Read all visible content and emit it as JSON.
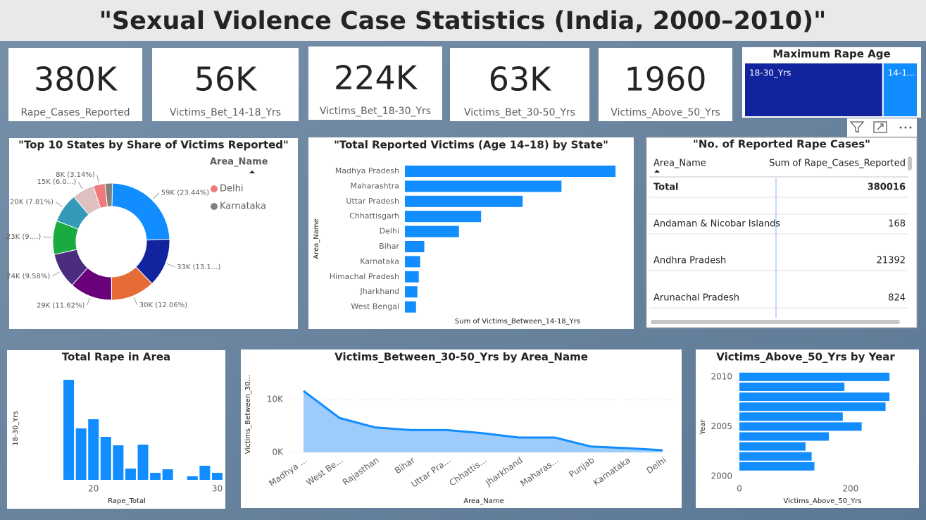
{
  "title": "\"Sexual Violence Case Statistics (India, 2000–2010)\"",
  "kpis": [
    {
      "value": "380K",
      "label": "Rape_Cases_Reported"
    },
    {
      "value": "56K",
      "label": "Victims_Bet_14-18_Yrs"
    },
    {
      "value": "224K",
      "label": "Victims_Bet_18-30_Yrs"
    },
    {
      "value": "63K",
      "label": "Victims_Bet_30-50_Yrs"
    },
    {
      "value": "1960",
      "label": "Victims_Above_50_Yrs"
    }
  ],
  "table": {
    "title": "\"No. of Reported Rape Cases\"",
    "columns": [
      "Area_Name",
      "Sum of Rape_Cases_Reported"
    ],
    "rows": [
      [
        "Total",
        380016
      ],
      [
        "Andaman & Nicobar Islands",
        168
      ],
      [
        "Andhra Pradesh",
        21392
      ],
      [
        "Arunachal Pradesh",
        824
      ]
    ]
  },
  "chart_data": [
    {
      "type": "treemap",
      "title": "Maximum Rape Age",
      "categories": [
        "18-30_Yrs",
        "14-1..."
      ],
      "values": [
        224000,
        56000
      ],
      "colors": [
        "#12239E",
        "#118DFF"
      ]
    },
    {
      "type": "donut",
      "title": "\"Top 10 States by Share of Victims Reported\"",
      "legend_title": "Area_Name",
      "categories": [
        null,
        null,
        null,
        null,
        null,
        null,
        null,
        null,
        "Delhi",
        "Karnataka"
      ],
      "values": [
        59000,
        33000,
        30000,
        29000,
        24000,
        23000,
        20000,
        15000,
        8000,
        5000
      ],
      "value_labels": [
        "59K (23.44%)",
        "33K (13.1...)",
        "30K (12.06%)",
        "29K (11.62%)",
        "24K (9.58%)",
        "23K (9....)",
        "20K (7.81%)",
        "15K (6.0...)",
        "8K (3.14%)",
        null
      ],
      "colors": [
        "#118DFF",
        "#12239E",
        "#E66C37",
        "#6B007B",
        "#4B2D7F",
        "#1AAB40",
        "#3599B8",
        "#DFBFBF",
        "#F07A7A",
        "#808080"
      ]
    },
    {
      "type": "hbar",
      "title": "\"Total Reported Victims (Age 14–18) by State\"",
      "categories": [
        "Madhya Pradesh",
        "Maharashtra",
        "Uttar Pradesh",
        "Chhattisgarh",
        "Delhi",
        "Bihar",
        "Karnataka",
        "Himachal Pradesh",
        "Jharkhand",
        "West Bengal"
      ],
      "values": [
        15200,
        11300,
        8500,
        5500,
        3900,
        1400,
        1100,
        1000,
        900,
        800
      ],
      "xlim": [
        0,
        15500
      ],
      "color": "#118DFF",
      "x_label": "Sum of Victims_Between_14-18_Yrs",
      "y_label": "Area_Name"
    },
    {
      "type": "column",
      "title": "Total Rape in Area",
      "x": [
        18,
        19,
        20,
        21,
        22,
        23,
        24,
        25,
        26,
        28,
        29,
        30
      ],
      "values": [
        142,
        73,
        86,
        61,
        49,
        16,
        50,
        10,
        15,
        5,
        20,
        10
      ],
      "xlim": [
        17,
        30.6
      ],
      "xticks": [
        20,
        30
      ],
      "ylim": [
        0,
        150
      ],
      "color": "#118DFF",
      "x_label": "Rape_Total",
      "y_label": "18-30_Yrs"
    },
    {
      "type": "area",
      "title": "Victims_Between_30-50_Yrs by Area_Name",
      "categories": [
        "Madhya ...",
        "West Be...",
        "Rajasthan",
        "Bihar",
        "Uttar Pra...",
        "Chhattis...",
        "Jharkhand",
        "Maharas...",
        "Punjab",
        "Karnataka",
        "Delhi"
      ],
      "values": [
        11600,
        6500,
        4700,
        4200,
        4200,
        3600,
        2800,
        2800,
        1100,
        800,
        400
      ],
      "ylim": [
        0,
        12500
      ],
      "yticks": [
        {
          "value": 0,
          "label": "0K"
        },
        {
          "value": 10000,
          "label": "10K"
        }
      ],
      "color": "#118DFF",
      "x_label": "Area_Name",
      "y_label": "Victims_Between_30..."
    },
    {
      "type": "year_bar",
      "title": "Victims_Above_50_Yrs by Year",
      "y": [
        2010,
        2009,
        2008,
        2007,
        2006,
        2005,
        2004,
        2003,
        2002,
        2001
      ],
      "values": [
        270,
        189,
        270,
        263,
        186,
        220,
        161,
        119,
        130,
        135
      ],
      "xlim": [
        0,
        280
      ],
      "xticks": [
        0,
        200
      ],
      "ylim": [
        1999,
        2010.7
      ],
      "yticks": [
        2000,
        2005,
        2010
      ],
      "color": "#118DFF",
      "x_label": "Victims_Above_50_Yrs",
      "y_label": "Year"
    }
  ]
}
